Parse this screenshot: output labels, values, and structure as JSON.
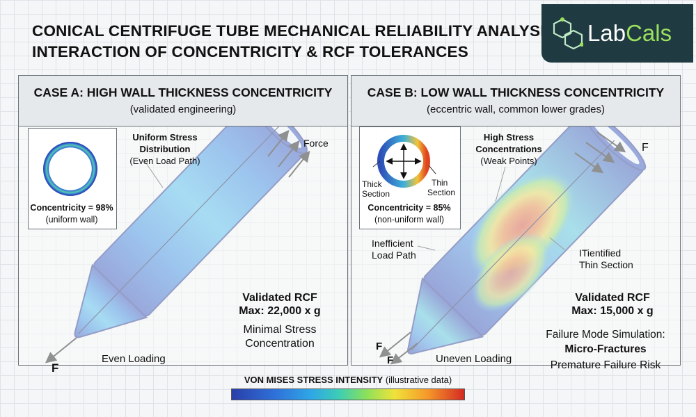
{
  "title": {
    "line1": "CONICAL CENTRIFUGE TUBE MECHANICAL RELIABILITY ANALYSIS:",
    "line2": "INTERACTION OF CONCENTRICITY & RCF TOLERANCES"
  },
  "brand": {
    "part1": "Lab",
    "part2": "Cals"
  },
  "case_a": {
    "title": "CASE A: HIGH WALL THICKNESS CONCENTRICITY",
    "subtitle": "(validated engineering)",
    "concentricity": "Concentricity = 98%",
    "wall_note": "(uniform wall)",
    "callout_line1": "Uniform Stress",
    "callout_line2": "Distribution",
    "callout_line3": "(Even Load Path)",
    "force_label": "Force",
    "rcf_heading": "Validated RCF",
    "rcf_max": "Max: 22,000 x g",
    "note_line1": "Minimal Stress",
    "note_line2": "Concentration",
    "loading": "Even Loading",
    "f_label": "F"
  },
  "case_b": {
    "title": "CASE B: LOW WALL THICKNESS CONCENTRICITY",
    "subtitle": "(eccentric wall, common lower grades)",
    "thick_line1": "Thick",
    "thick_line2": "Section",
    "thin_line1": "Thin",
    "thin_line2": "Section",
    "concentricity": "Concentricity = 85%",
    "wall_note": "(non-uniform wall)",
    "callout_line1": "High Stress",
    "callout_line2": "Concentrations",
    "callout_line3": "(Weak Points)",
    "inefficient_line1": "Inefficient",
    "inefficient_line2": "Load Path",
    "identified_line1": "ITientified",
    "identified_line2": "Thin Section",
    "f_label": "F",
    "rcf_heading": "Validated RCF",
    "rcf_max": "Max: 15,000 x g",
    "failure_line1": "Failure Mode Simulation:",
    "failure_line2": "Micro-Fractures",
    "failure_line3": "Premature Failure Risk",
    "loading": "Uneven Loading"
  },
  "legend": {
    "label_bold": "VON MISES STRESS INTENSITY",
    "label_note": "(illustrative data)"
  },
  "colors": {
    "brand_bg": "#1f3a40",
    "brand_accent": "#9be05e",
    "stress_low": "#2a3ea8",
    "stress_mid": "#8de15a",
    "stress_high": "#d42a22"
  }
}
